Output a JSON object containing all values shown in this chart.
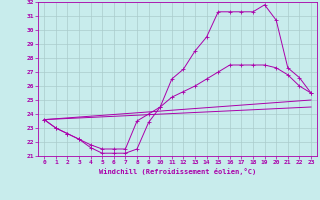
{
  "xlabel": "Windchill (Refroidissement éolien,°C)",
  "bg_color": "#c8ecec",
  "line_color": "#aa00aa",
  "grid_color": "#aacccc",
  "xlim": [
    -0.5,
    23.5
  ],
  "ylim": [
    21,
    32
  ],
  "xticks": [
    0,
    1,
    2,
    3,
    4,
    5,
    6,
    7,
    8,
    9,
    10,
    11,
    12,
    13,
    14,
    15,
    16,
    17,
    18,
    19,
    20,
    21,
    22,
    23
  ],
  "yticks": [
    21,
    22,
    23,
    24,
    25,
    26,
    27,
    28,
    29,
    30,
    31,
    32
  ],
  "line1_x": [
    0,
    1,
    2,
    3,
    4,
    5,
    6,
    7,
    8,
    9,
    10,
    11,
    12,
    13,
    14,
    15,
    16,
    17,
    18,
    19,
    20,
    21,
    22,
    23
  ],
  "line1_y": [
    23.6,
    23.0,
    22.6,
    22.2,
    21.6,
    21.2,
    21.2,
    21.2,
    21.5,
    23.4,
    24.5,
    26.5,
    27.2,
    28.5,
    29.5,
    31.3,
    31.3,
    31.3,
    31.3,
    31.8,
    30.7,
    27.3,
    26.6,
    25.5
  ],
  "line2_x": [
    0,
    1,
    2,
    3,
    4,
    5,
    6,
    7,
    8,
    9,
    10,
    11,
    12,
    13,
    14,
    15,
    16,
    17,
    18,
    19,
    20,
    21,
    22,
    23
  ],
  "line2_y": [
    23.6,
    23.0,
    22.6,
    22.2,
    21.8,
    21.5,
    21.5,
    21.5,
    23.5,
    24.0,
    24.5,
    25.2,
    25.6,
    26.0,
    26.5,
    27.0,
    27.5,
    27.5,
    27.5,
    27.5,
    27.3,
    26.8,
    26.0,
    25.5
  ],
  "line3_x": [
    0,
    23
  ],
  "line3_y": [
    23.6,
    25.0
  ],
  "line4_x": [
    0,
    23
  ],
  "line4_y": [
    23.6,
    24.5
  ]
}
